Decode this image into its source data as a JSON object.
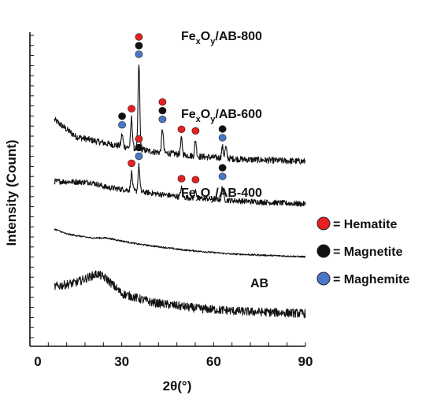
{
  "chart_data": {
    "type": "line",
    "xlabel": "2θ(°)",
    "ylabel": "Intensity (Count)",
    "xlim": [
      0,
      90
    ],
    "xticks": [
      0,
      30,
      60,
      90
    ],
    "x_minor_step": 6,
    "y_ticks_labeled": false,
    "grid": false,
    "legend_position": "right",
    "phases": [
      {
        "key": "hematite",
        "label": "= Hematite",
        "color": "#e8201f"
      },
      {
        "key": "magnetite",
        "label": "= Magnetite",
        "color": "#111111"
      },
      {
        "key": "maghemite",
        "label": "= Maghemite",
        "color": "#4a77c9"
      }
    ],
    "series": [
      {
        "name": "FexOy/AB-800",
        "label_main": "Fe",
        "label_sub1": "x",
        "label_mid": "O",
        "label_sub2": "y",
        "label_tail": "/AB-800",
        "x_range": [
          8,
          90
        ],
        "baseline": [
          [
            8,
            6.2
          ],
          [
            15,
            5.35
          ],
          [
            25,
            5.0
          ],
          [
            40,
            4.6
          ],
          [
            55,
            4.35
          ],
          [
            70,
            4.2
          ],
          [
            90,
            4.1
          ]
        ],
        "noise": 0.16,
        "peaks": [
          {
            "x": 30.1,
            "height": 0.6,
            "markers": [
              "magnetite",
              "maghemite"
            ]
          },
          {
            "x": 33.2,
            "height": 1.5,
            "markers": [
              "hematite"
            ]
          },
          {
            "x": 35.6,
            "height": 4.3,
            "markers": [
              "hematite",
              "magnetite",
              "maghemite"
            ]
          },
          {
            "x": 43.3,
            "height": 1.2,
            "markers": [
              "hematite",
              "magnetite",
              "maghemite"
            ]
          },
          {
            "x": 49.5,
            "height": 0.8,
            "markers": [
              "hematite"
            ]
          },
          {
            "x": 54.1,
            "height": 0.8,
            "markers": [
              "hematite"
            ]
          },
          {
            "x": 62.9,
            "height": 0.55,
            "markers": [
              "magnetite",
              "maghemite"
            ]
          },
          {
            "x": 64.0,
            "height": 0.55,
            "markers": []
          }
        ]
      },
      {
        "name": "FexOy/AB-600",
        "label_main": "Fe",
        "label_sub1": "x",
        "label_mid": "O",
        "label_sub2": "y",
        "label_tail": "/AB-600",
        "x_range": [
          8,
          90
        ],
        "baseline": [
          [
            8,
            3.1
          ],
          [
            20,
            3.05
          ],
          [
            25,
            2.8
          ],
          [
            35,
            2.6
          ],
          [
            50,
            2.3
          ],
          [
            70,
            2.1
          ],
          [
            90,
            1.95
          ]
        ],
        "noise": 0.14,
        "peaks": [
          {
            "x": 33.2,
            "height": 0.9,
            "markers": [
              "hematite"
            ]
          },
          {
            "x": 35.6,
            "height": 1.3,
            "markers": [
              "hematite",
              "magnetite",
              "maghemite"
            ]
          },
          {
            "x": 49.5,
            "height": 0.45,
            "markers": [
              "hematite"
            ]
          },
          {
            "x": 54.1,
            "height": 0.45,
            "markers": [
              "hematite"
            ]
          },
          {
            "x": 62.9,
            "height": 0.7,
            "markers": [
              "magnetite",
              "maghemite"
            ]
          }
        ]
      },
      {
        "name": "FexOy/AB-400",
        "label_main": "Fe",
        "label_sub1": "x",
        "label_mid": "O",
        "label_sub2": "y",
        "label_tail": "/AB-400",
        "x_range": [
          8,
          90
        ],
        "baseline": [
          [
            8,
            0.7
          ],
          [
            12,
            0.45
          ],
          [
            20,
            0.25
          ],
          [
            25,
            0.25
          ],
          [
            35,
            -0.05
          ],
          [
            50,
            -0.35
          ],
          [
            65,
            -0.55
          ],
          [
            90,
            -0.7
          ]
        ],
        "noise": 0.04,
        "peaks": []
      },
      {
        "name": "AB",
        "label_main": "AB",
        "label_sub1": "",
        "label_mid": "",
        "label_sub2": "",
        "label_tail": "",
        "x_range": [
          8,
          90
        ],
        "baseline": [
          [
            8,
            -2.2
          ],
          [
            15,
            -2.0
          ],
          [
            22,
            -1.55
          ],
          [
            25,
            -1.8
          ],
          [
            30,
            -2.55
          ],
          [
            40,
            -3.0
          ],
          [
            55,
            -3.3
          ],
          [
            70,
            -3.45
          ],
          [
            90,
            -3.55
          ]
        ],
        "noise": 0.22,
        "peaks": []
      }
    ]
  }
}
